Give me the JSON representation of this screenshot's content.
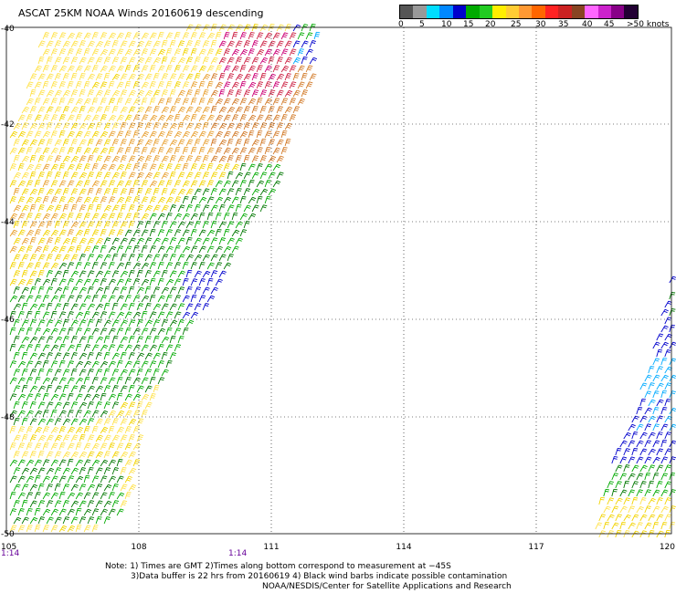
{
  "title": "ASCAT 25KM NOAA Winds 20160619 descending",
  "legend": {
    "colors": [
      "#555555",
      "#999999",
      "#00ddff",
      "#0088ff",
      "#0000cc",
      "#00aa00",
      "#22cc22",
      "#ffee00",
      "#ffcc33",
      "#ff9933",
      "#ff6600",
      "#ff2222",
      "#cc2222",
      "#884422",
      "#ff66ff",
      "#cc22cc",
      "#880088",
      "#220033"
    ],
    "labels": [
      "0",
      "5",
      "10",
      "15",
      "20",
      "25",
      "30",
      "35",
      "40",
      "45",
      ">50 knots"
    ]
  },
  "map": {
    "lat_labels": [
      "-40",
      "-42",
      "-44",
      "-46",
      "-48",
      "-50"
    ],
    "lon_labels": [
      "105",
      "108",
      "111",
      "114",
      "117",
      "120"
    ],
    "time_labels": [
      "1:14",
      "1:14"
    ],
    "colors": {
      "yellow": "#f2d300",
      "light_yellow": "#ffe24a",
      "orange": "#e8a030",
      "dark_orange": "#d27a28",
      "red": "#cc2244",
      "magenta": "#cc0077",
      "green": "#00aa00",
      "dark_green": "#007700",
      "blue": "#0000cc",
      "cyan": "#00aaff",
      "black": "#000000"
    }
  },
  "notes": [
    "Note: 1) Times are GMT 2)Times along bottom correspond to measurement at −45S",
    "3)Data buffer is 22 hrs from 20160619 4) Black wind barbs indicate possible contamination",
    "NOAA/NESDIS/Center for Satellite Applications and Research"
  ]
}
